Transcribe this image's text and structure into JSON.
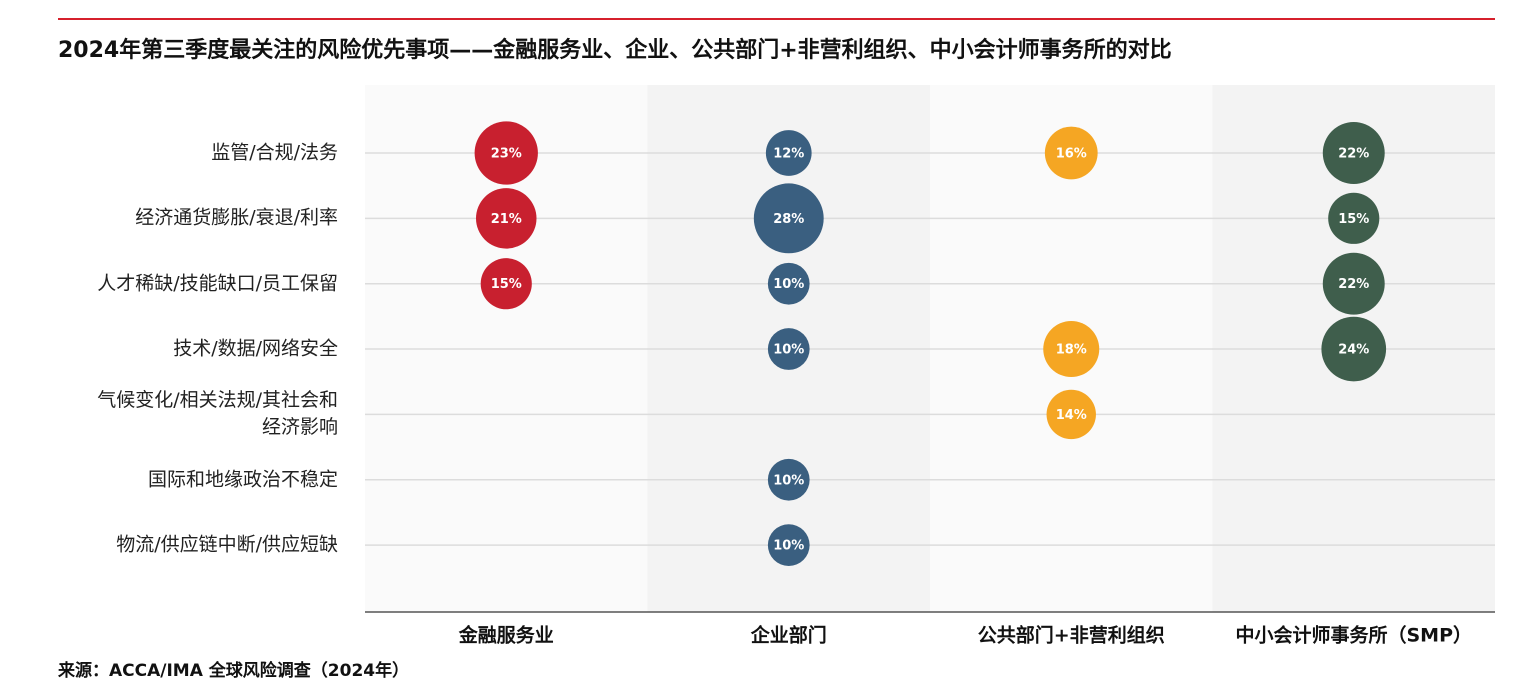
{
  "chart_data": {
    "type": "bubble",
    "title": "2024年第三季度最关注的风险优先事项——金融服务业、企业、公共部门+非营利组织、中小会计师事务所的对比",
    "categories": [
      "监管/合规/法务",
      "经济通货膨胀/衰退/利率",
      "人才稀缺/技能缺口/员工保留",
      "技术/数据/网络安全",
      "气候变化/相关法规/其社会和\n经济影响",
      "国际和地缘政治不稳定",
      "物流/供应链中断/供应短缺"
    ],
    "series": [
      {
        "name": "金融服务业",
        "color": "#c8202f",
        "values": [
          23,
          21,
          15,
          null,
          null,
          null,
          null
        ],
        "value_labels": [
          "23%",
          "21%",
          "15%",
          null,
          null,
          null,
          null
        ]
      },
      {
        "name": "企业部门",
        "color": "#3a5f80",
        "values": [
          12,
          28,
          10,
          10,
          null,
          10,
          10
        ],
        "value_labels": [
          "12%",
          "28%",
          "10%",
          "10%",
          null,
          "10%",
          "10%"
        ]
      },
      {
        "name": "公共部门+非营利组织",
        "color": "#f5a623",
        "values": [
          16,
          null,
          null,
          18,
          14,
          null,
          null
        ],
        "value_labels": [
          "16%",
          null,
          null,
          "18%",
          "14%",
          null,
          null
        ]
      },
      {
        "name": "中小会计师事务所（SMP）",
        "color": "#3f5e4c",
        "values": [
          22,
          15,
          22,
          24,
          null,
          null,
          null
        ],
        "value_labels": [
          "22%",
          "15%",
          "22%",
          "24%",
          null,
          null,
          null
        ]
      }
    ],
    "grid": true,
    "source": "来源：ACCA/IMA 全球风险调查（2024年）"
  }
}
